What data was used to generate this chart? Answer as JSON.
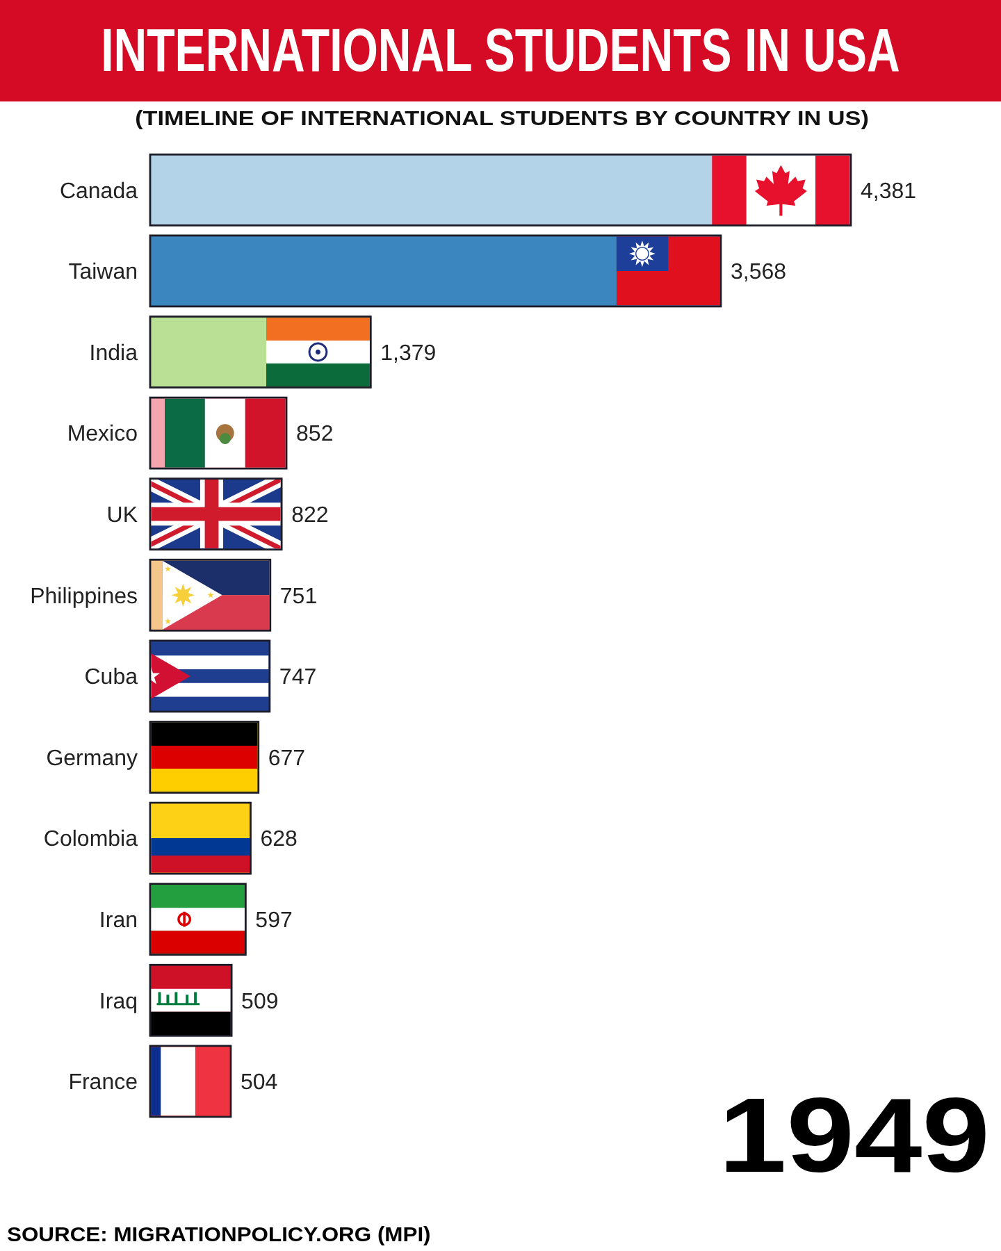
{
  "chart_data": {
    "type": "bar",
    "orientation": "horizontal",
    "title": "INTERNATIONAL STUDENTS IN USA",
    "subtitle": "(TIMELINE OF INTERNATIONAL STUDENTS BY COUNTRY IN US)",
    "categories": [
      "Canada",
      "Taiwan",
      "India",
      "Mexico",
      "UK",
      "Philippines",
      "Cuba",
      "Germany",
      "Colombia",
      "Iran",
      "Iraq",
      "France"
    ],
    "values": [
      4381,
      3568,
      1379,
      852,
      822,
      751,
      747,
      677,
      628,
      597,
      509,
      504
    ],
    "colors": [
      "#b3d4e8",
      "#3b86bf",
      "#b9e095",
      "#f3a6ae",
      "#1f3c88",
      "#f4c68c",
      "#1f3e8f",
      "#ffce00",
      "#fcd116",
      "#239f40",
      "#ce1126",
      "#ef3340"
    ],
    "value_labels": [
      "4,381",
      "3,568",
      "1,379",
      "852",
      "822",
      "751",
      "747",
      "677",
      "628",
      "597",
      "509",
      "504"
    ],
    "annotations": [
      "1949",
      "SOURCE: MIGRATIONPOLICY.ORG (MPI)"
    ]
  }
}
